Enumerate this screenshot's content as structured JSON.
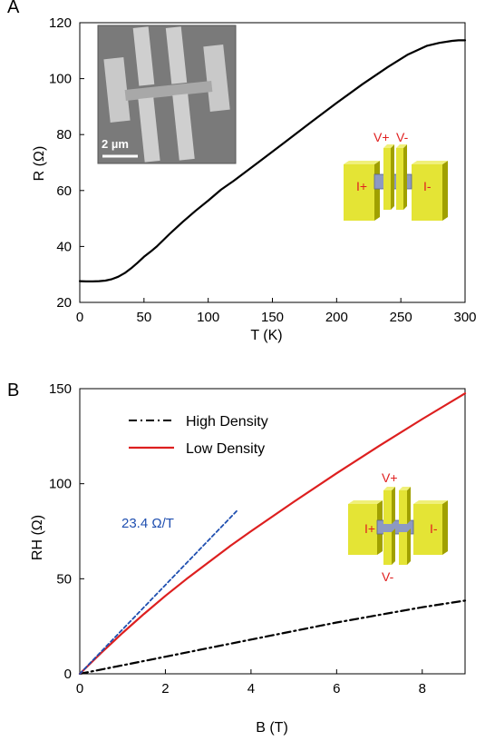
{
  "chart_data": [
    {
      "type": "line",
      "panel_label": "A",
      "xlabel": "T (K)",
      "ylabel": "R (Ω)",
      "xlim": [
        0,
        300
      ],
      "ylim": [
        20,
        120
      ],
      "xticks": [
        0,
        50,
        100,
        150,
        200,
        250,
        300
      ],
      "yticks": [
        20,
        40,
        60,
        80,
        100,
        120
      ],
      "grid": false,
      "inset_scale_label": "2 µm",
      "device_labels": {
        "v_plus": "V+",
        "v_minus": "V-",
        "i_plus": "I+",
        "i_minus": "I-"
      },
      "series": [
        {
          "color": "#000000",
          "x": [
            0,
            5,
            10,
            15,
            20,
            25,
            30,
            35,
            40,
            45,
            50,
            55,
            60,
            70,
            80,
            90,
            100,
            110,
            120,
            140,
            160,
            180,
            200,
            220,
            240,
            255,
            270,
            280,
            290,
            295,
            300
          ],
          "y": [
            27.6,
            27.5,
            27.5,
            27.6,
            27.8,
            28.3,
            29.2,
            30.5,
            32.2,
            34.2,
            36.3,
            38.1,
            40.0,
            44.5,
            48.7,
            52.7,
            56.4,
            60.3,
            63.5,
            70.4,
            77.4,
            84.4,
            91.3,
            98.0,
            104.2,
            108.5,
            111.7,
            112.8,
            113.5,
            113.7,
            113.7
          ]
        }
      ]
    },
    {
      "type": "line",
      "panel_label": "B",
      "xlabel": "B (T)",
      "ylabel": "RH (Ω)",
      "xlim": [
        0,
        9
      ],
      "ylim": [
        0,
        150
      ],
      "xticks": [
        0,
        2,
        4,
        6,
        8
      ],
      "yticks": [
        0,
        50,
        100,
        150
      ],
      "grid": false,
      "legend_position": "top-left",
      "annotation": "23.4 Ω/T",
      "device_labels": {
        "v_plus": "V+",
        "v_minus": "V-",
        "i_plus": "I+",
        "i_minus": "I-"
      },
      "series": [
        {
          "name": "High Density",
          "color": "#000000",
          "style": "dash-dot",
          "x": [
            0,
            1,
            2,
            3,
            4,
            5,
            6,
            7,
            8,
            8.5,
            9
          ],
          "y": [
            0,
            4.5,
            9,
            13.5,
            18,
            22.5,
            27,
            31,
            35,
            36.8,
            38.5
          ]
        },
        {
          "name": "Low Density",
          "color": "#dd1f1f",
          "style": "solid",
          "x": [
            0,
            0.5,
            1,
            1.5,
            2,
            2.5,
            3,
            3.5,
            4,
            5,
            6,
            7,
            8,
            9
          ],
          "y": [
            0,
            11,
            21.5,
            31.5,
            41,
            50,
            58.5,
            67,
            75,
            90.5,
            105.5,
            120,
            134,
            147.5
          ]
        },
        {
          "name": "23.4 Ω/T",
          "color": "#1f4fb0",
          "style": "dashed",
          "x": [
            0,
            3.68
          ],
          "y": [
            0,
            86
          ]
        }
      ]
    }
  ]
}
